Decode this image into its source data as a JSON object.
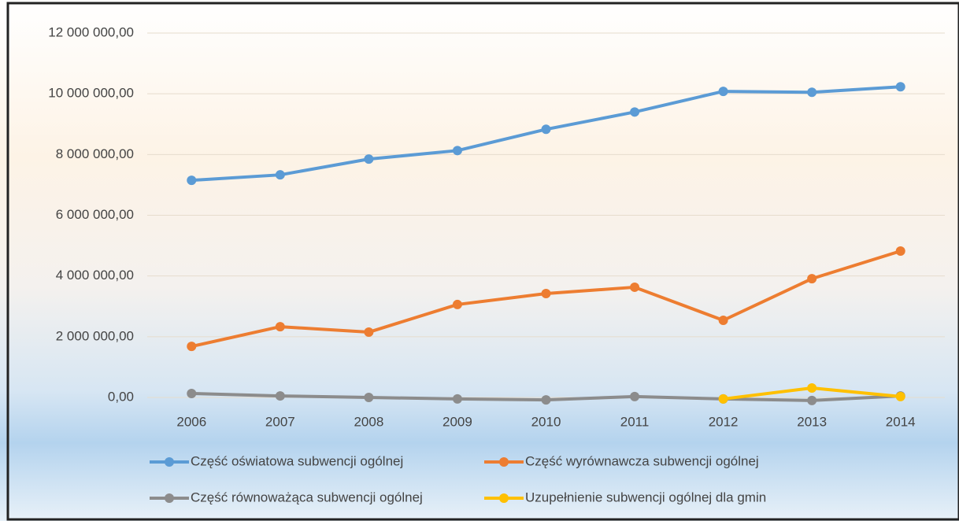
{
  "chart_data": {
    "type": "line",
    "categories": [
      "2006",
      "2007",
      "2008",
      "2009",
      "2010",
      "2011",
      "2012",
      "2013",
      "2014"
    ],
    "series": [
      {
        "name": "Część oświatowa subwencji ogólnej",
        "color": "#5b9bd5",
        "values": [
          7150000,
          7330000,
          7850000,
          8130000,
          8830000,
          9400000,
          10080000,
          10050000,
          10230000
        ]
      },
      {
        "name": "Część wyrównawcza subwencji ogólnej",
        "color": "#ed7d31",
        "values": [
          1680000,
          2330000,
          2150000,
          3060000,
          3420000,
          3630000,
          2540000,
          3910000,
          4820000
        ]
      },
      {
        "name": "Część równoważąca subwencji ogólnej",
        "color": "#8c8c8c",
        "values": [
          130000,
          50000,
          0,
          -50000,
          -80000,
          30000,
          -50000,
          -100000,
          50000
        ]
      },
      {
        "name": "Uzupełnienie subwencji ogólnej dla gmin",
        "color": "#ffc000",
        "values": [
          null,
          null,
          null,
          null,
          null,
          null,
          -50000,
          310000,
          30000
        ]
      }
    ],
    "ylim": [
      0,
      12000000
    ],
    "yticks": [
      {
        "value": 0,
        "label": "0,00"
      },
      {
        "value": 2000000,
        "label": "2 000 000,00"
      },
      {
        "value": 4000000,
        "label": "4 000 000,00"
      },
      {
        "value": 6000000,
        "label": "6 000 000,00"
      },
      {
        "value": 8000000,
        "label": "8 000 000,00"
      },
      {
        "value": 10000000,
        "label": "10 000 000,00"
      },
      {
        "value": 12000000,
        "label": "12 000 000,00"
      }
    ],
    "grid": true,
    "legend": "bottom"
  }
}
